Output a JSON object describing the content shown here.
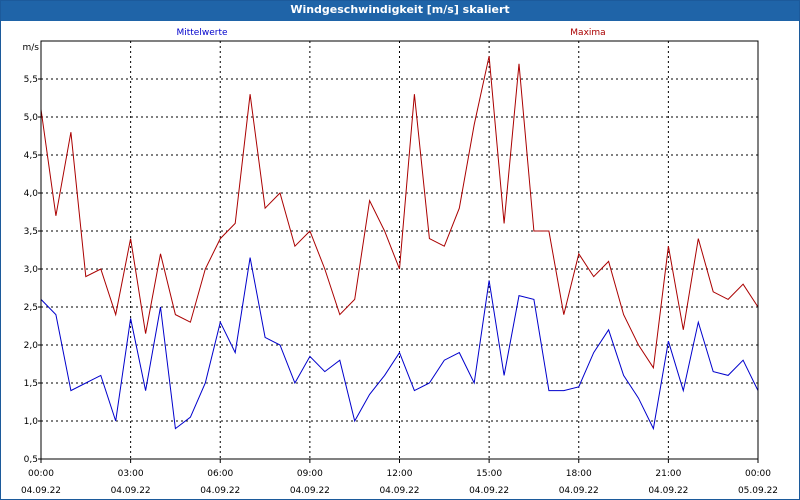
{
  "window": {
    "title": "Windgeschwindigkeit [m/s] skaliert"
  },
  "colors": {
    "mean": "#0000cc",
    "max": "#aa0000",
    "axis": "#000000",
    "grid": "#000000",
    "titlebar": "#1f64a8"
  },
  "chart_data": {
    "type": "line",
    "title": "Windgeschwindigkeit [m/s] skaliert",
    "ylabel": "m/s",
    "xlabel": "",
    "ylim": [
      0.5,
      6.0
    ],
    "xlim": [
      "04.09.22 00:00",
      "05.09.22 00:00"
    ],
    "yticks": [
      "0,5",
      "1,0",
      "1,5",
      "2,0",
      "2,5",
      "3,0",
      "3,5",
      "4,0",
      "4,5",
      "5,0",
      "5,5"
    ],
    "xticks": [
      {
        "time": "00:00",
        "date": "04.09.22"
      },
      {
        "time": "03:00",
        "date": "04.09.22"
      },
      {
        "time": "06:00",
        "date": "04.09.22"
      },
      {
        "time": "09:00",
        "date": "04.09.22"
      },
      {
        "time": "12:00",
        "date": "04.09.22"
      },
      {
        "time": "15:00",
        "date": "04.09.22"
      },
      {
        "time": "18:00",
        "date": "04.09.22"
      },
      {
        "time": "21:00",
        "date": "04.09.22"
      },
      {
        "time": "00:00",
        "date": "05.09.22"
      }
    ],
    "grid": true,
    "legend_position": "top",
    "x_hours": [
      0,
      0.5,
      1,
      1.5,
      2,
      2.5,
      3,
      3.5,
      4,
      4.5,
      5,
      5.5,
      6,
      6.5,
      7,
      7.5,
      8,
      8.5,
      9,
      9.5,
      10,
      10.5,
      11,
      11.5,
      12,
      12.5,
      13,
      13.5,
      14,
      14.5,
      15,
      15.5,
      16,
      16.5,
      17,
      17.5,
      18,
      18.5,
      19,
      19.5,
      20,
      20.5,
      21,
      21.5,
      22,
      22.5,
      23,
      23.5,
      24
    ],
    "series": [
      {
        "name": "Mittelwerte",
        "values": [
          2.6,
          2.4,
          1.4,
          1.5,
          1.6,
          1.0,
          2.35,
          1.4,
          2.5,
          0.9,
          1.05,
          1.5,
          2.3,
          1.9,
          3.15,
          2.1,
          2.0,
          1.5,
          1.85,
          1.65,
          1.8,
          1.0,
          1.35,
          1.6,
          1.9,
          1.4,
          1.5,
          1.8,
          1.9,
          1.5,
          2.85,
          1.6,
          2.65,
          2.6,
          1.4,
          1.4,
          1.45,
          1.9,
          2.2,
          1.6,
          1.3,
          0.9,
          2.05,
          1.4,
          2.3,
          1.65,
          1.6,
          1.8,
          1.4
        ]
      },
      {
        "name": "Maxima",
        "values": [
          5.1,
          3.7,
          4.8,
          2.9,
          3.0,
          2.4,
          3.4,
          2.15,
          3.2,
          2.4,
          2.3,
          3.0,
          3.4,
          3.6,
          5.3,
          3.8,
          4.0,
          3.3,
          3.5,
          3.0,
          2.4,
          2.6,
          3.9,
          3.5,
          3.0,
          5.3,
          3.4,
          3.3,
          3.8,
          4.9,
          5.8,
          3.6,
          5.7,
          3.5,
          3.5,
          2.4,
          3.2,
          2.9,
          3.1,
          2.4,
          2.0,
          1.7,
          3.3,
          2.2,
          3.4,
          2.7,
          2.6,
          2.8,
          2.5
        ]
      }
    ]
  }
}
